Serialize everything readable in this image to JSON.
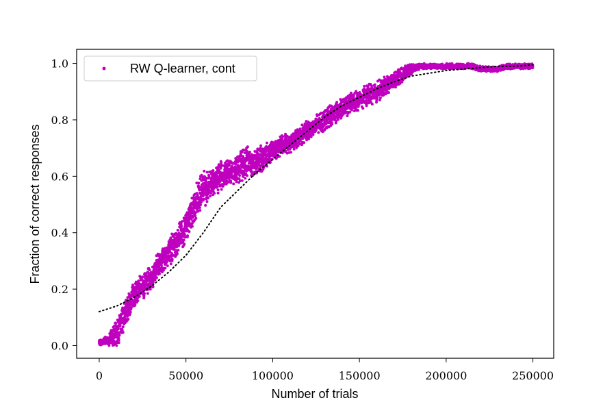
{
  "chart_data": {
    "type": "scatter",
    "title": "",
    "xlabel": "Number of trials",
    "ylabel": "Fraction of correct responses",
    "xlim": [
      -13000,
      262000
    ],
    "ylim": [
      -0.045,
      1.05
    ],
    "xticks": [
      0,
      50000,
      100000,
      150000,
      200000,
      250000
    ],
    "xtick_labels": [
      "0",
      "50000",
      "100000",
      "150000",
      "200000",
      "250000"
    ],
    "yticks": [
      0.0,
      0.2,
      0.4,
      0.6,
      0.8,
      1.0
    ],
    "ytick_labels": [
      "0.0",
      "0.2",
      "0.4",
      "0.6",
      "0.8",
      "1.0"
    ],
    "grid": false,
    "legend_position": "top-left",
    "series": [
      {
        "name": "RW Q-learner, cont",
        "style": "scatter",
        "color": "#bf00bf",
        "x": [
          0,
          5000,
          10000,
          15000,
          20000,
          25000,
          30000,
          35000,
          40000,
          45000,
          50000,
          55000,
          60000,
          65000,
          70000,
          75000,
          80000,
          85000,
          90000,
          95000,
          100000,
          105000,
          110000,
          115000,
          120000,
          125000,
          130000,
          135000,
          140000,
          145000,
          150000,
          155000,
          160000,
          165000,
          170000,
          175000,
          180000,
          185000,
          190000,
          195000,
          200000,
          205000,
          210000,
          215000,
          220000,
          225000,
          230000,
          235000,
          240000,
          245000,
          250000
        ],
        "y": [
          0.01,
          0.02,
          0.04,
          0.12,
          0.18,
          0.21,
          0.24,
          0.29,
          0.33,
          0.37,
          0.42,
          0.5,
          0.55,
          0.58,
          0.6,
          0.61,
          0.63,
          0.65,
          0.65,
          0.67,
          0.69,
          0.71,
          0.72,
          0.74,
          0.76,
          0.78,
          0.8,
          0.82,
          0.84,
          0.86,
          0.87,
          0.89,
          0.9,
          0.92,
          0.94,
          0.96,
          0.98,
          0.99,
          0.99,
          0.99,
          0.99,
          0.99,
          0.99,
          0.99,
          0.98,
          0.98,
          0.98,
          0.99,
          0.99,
          0.99,
          0.99
        ],
        "spread": [
          0.01,
          0.02,
          0.05,
          0.06,
          0.05,
          0.05,
          0.05,
          0.05,
          0.05,
          0.06,
          0.06,
          0.07,
          0.07,
          0.06,
          0.06,
          0.05,
          0.06,
          0.06,
          0.05,
          0.05,
          0.04,
          0.04,
          0.04,
          0.04,
          0.04,
          0.04,
          0.04,
          0.04,
          0.04,
          0.04,
          0.04,
          0.04,
          0.04,
          0.04,
          0.03,
          0.03,
          0.02,
          0.01,
          0.01,
          0.01,
          0.01,
          0.01,
          0.01,
          0.01,
          0.01,
          0.01,
          0.01,
          0.01,
          0.01,
          0.01,
          0.01
        ]
      },
      {
        "style": "dotted-line",
        "color": "#000000",
        "x": [
          0,
          10000,
          20000,
          30000,
          40000,
          50000,
          60000,
          70000,
          80000,
          90000,
          100000,
          110000,
          120000,
          130000,
          140000,
          150000,
          160000,
          170000,
          180000,
          190000,
          200000,
          210000,
          220000,
          230000,
          240000,
          250000
        ],
        "y": [
          0.12,
          0.14,
          0.17,
          0.21,
          0.26,
          0.32,
          0.4,
          0.49,
          0.55,
          0.61,
          0.66,
          0.71,
          0.76,
          0.81,
          0.85,
          0.88,
          0.91,
          0.935,
          0.955,
          0.965,
          0.975,
          0.98,
          0.985,
          0.99,
          0.99,
          0.995
        ]
      }
    ]
  }
}
